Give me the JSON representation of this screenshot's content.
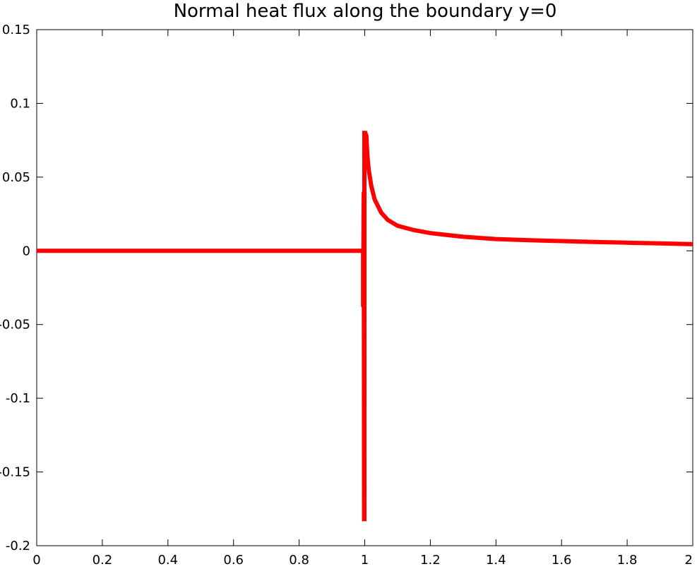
{
  "chart_data": {
    "type": "line",
    "title": "Normal heat flux along the boundary y=0",
    "xlabel": "",
    "ylabel": "",
    "xlim": [
      0,
      2
    ],
    "ylim": [
      -0.2,
      0.15
    ],
    "x_ticks": [
      "0",
      "0.2",
      "0.4",
      "0.6",
      "0.8",
      "1",
      "1.2",
      "1.4",
      "1.6",
      "1.8",
      "2"
    ],
    "y_ticks": [
      "-0.2",
      "-0.15",
      "-0.1",
      "-0.05",
      "0",
      "0.05",
      "0.1",
      "0.15"
    ],
    "grid": false,
    "series": [
      {
        "color": "#ff0000",
        "x": [
          0,
          0.2,
          0.4,
          0.6,
          0.8,
          0.99,
          0.995,
          0.995,
          0.997,
          0.998,
          0.999,
          0.999,
          1.0,
          1.0,
          1.0,
          1.002,
          1.005,
          1.008,
          1.012,
          1.02,
          1.03,
          1.05,
          1.07,
          1.1,
          1.15,
          1.2,
          1.3,
          1.4,
          1.5,
          1.6,
          1.7,
          1.8,
          1.9,
          2.0
        ],
        "y": [
          0,
          0,
          0,
          0,
          0,
          0,
          0,
          -0.038,
          0.04,
          -0.182,
          -0.182,
          0.08,
          0.08,
          0.075,
          0.08,
          0.08,
          0.078,
          0.065,
          0.055,
          0.044,
          0.035,
          0.026,
          0.021,
          0.017,
          0.014,
          0.012,
          0.0095,
          0.008,
          0.0072,
          0.0066,
          0.006,
          0.0055,
          0.005,
          0.0045
        ]
      }
    ]
  }
}
